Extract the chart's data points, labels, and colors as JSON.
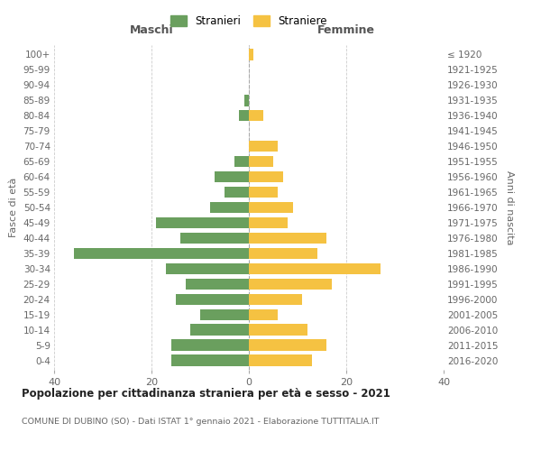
{
  "age_groups": [
    "0-4",
    "5-9",
    "10-14",
    "15-19",
    "20-24",
    "25-29",
    "30-34",
    "35-39",
    "40-44",
    "45-49",
    "50-54",
    "55-59",
    "60-64",
    "65-69",
    "70-74",
    "75-79",
    "80-84",
    "85-89",
    "90-94",
    "95-99",
    "100+"
  ],
  "birth_years": [
    "2016-2020",
    "2011-2015",
    "2006-2010",
    "2001-2005",
    "1996-2000",
    "1991-1995",
    "1986-1990",
    "1981-1985",
    "1976-1980",
    "1971-1975",
    "1966-1970",
    "1961-1965",
    "1956-1960",
    "1951-1955",
    "1946-1950",
    "1941-1945",
    "1936-1940",
    "1931-1935",
    "1926-1930",
    "1921-1925",
    "≤ 1920"
  ],
  "maschi": [
    16,
    16,
    12,
    10,
    15,
    13,
    17,
    36,
    14,
    19,
    8,
    5,
    7,
    3,
    0,
    0,
    2,
    1,
    0,
    0,
    0
  ],
  "femmine": [
    13,
    16,
    12,
    6,
    11,
    17,
    27,
    14,
    16,
    8,
    9,
    6,
    7,
    5,
    6,
    0,
    3,
    0,
    0,
    0,
    1
  ],
  "maschi_color": "#6a9f5e",
  "femmine_color": "#f5c242",
  "title": "Popolazione per cittadinanza straniera per età e sesso - 2021",
  "subtitle": "COMUNE DI DUBINO (SO) - Dati ISTAT 1° gennaio 2021 - Elaborazione TUTTITALIA.IT",
  "xlabel_left": "Maschi",
  "xlabel_right": "Femmine",
  "ylabel_left": "Fasce di età",
  "ylabel_right": "Anni di nascita",
  "legend_maschi": "Stranieri",
  "legend_femmine": "Straniere",
  "xlim": 40,
  "background_color": "#ffffff",
  "grid_color": "#cccccc"
}
